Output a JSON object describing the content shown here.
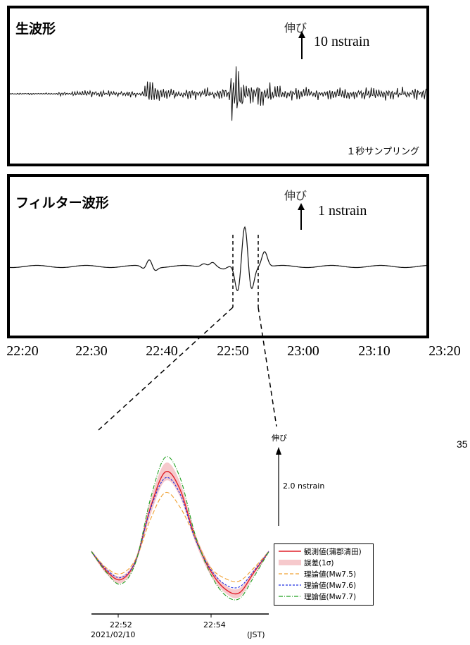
{
  "panels": {
    "raw": {
      "title": "生波形",
      "stretch_label": "伸び",
      "scale_label": "10 nstrain",
      "sampling_note": "１秒サンプリング"
    },
    "filter": {
      "title": "フィルター波形",
      "stretch_label": "伸び",
      "scale_label": "1 nstrain"
    }
  },
  "time_axis": {
    "ticks": [
      "22:20",
      "22:30",
      "22:40",
      "22:50",
      "23:00",
      "23:10",
      "23:20"
    ]
  },
  "page_number": "35",
  "zoom": {
    "stretch_label": "伸び",
    "scale_label": "2.0 nstrain",
    "x_ticks": [
      "22:52",
      "22:54"
    ],
    "date_label": "2021/02/10",
    "tz_label": "(JST)",
    "legend": [
      {
        "label": "観測値(蒲郡清田)",
        "color": "#e0202a",
        "style": "solid"
      },
      {
        "label": "誤差(1σ)",
        "color": "#f6c9cc",
        "style": "band"
      },
      {
        "label": "理論値(Mw7.5)",
        "color": "#f0a030",
        "style": "dashed"
      },
      {
        "label": "理論値(Mw7.6)",
        "color": "#2030e0",
        "style": "dashed"
      },
      {
        "label": "理論値(Mw7.7)",
        "color": "#20a020",
        "style": "dashdot"
      }
    ]
  },
  "chart_data": {
    "type": "line",
    "x_unit": "minutes",
    "zoom_series": [
      {
        "name": "観測値(蒲郡清田)",
        "x": [
          0,
          0.5,
          1.0,
          1.5,
          2.0,
          2.5,
          3.0,
          3.5,
          4.0,
          4.5,
          5.0,
          5.5,
          6.0
        ],
        "values": [
          0.1,
          -0.55,
          -0.85,
          -0.2,
          1.6,
          2.8,
          2.2,
          0.6,
          -0.5,
          -1.15,
          -1.3,
          -0.6,
          0.1
        ]
      },
      {
        "name": "理論値(Mw7.5)",
        "x": [
          0,
          0.5,
          1.0,
          1.5,
          2.0,
          2.5,
          3.0,
          3.5,
          4.0,
          4.5,
          5.0,
          5.5,
          6.0
        ],
        "values": [
          0.1,
          -0.45,
          -0.65,
          -0.15,
          1.2,
          2.1,
          1.6,
          0.6,
          -0.4,
          -0.8,
          -0.9,
          -0.45,
          0.1
        ]
      },
      {
        "name": "理論値(Mw7.6)",
        "x": [
          0,
          0.5,
          1.0,
          1.5,
          2.0,
          2.5,
          3.0,
          3.5,
          4.0,
          4.5,
          5.0,
          5.5,
          6.0
        ],
        "values": [
          0.1,
          -0.5,
          -0.78,
          -0.2,
          1.55,
          2.6,
          2.05,
          0.55,
          -0.45,
          -1.0,
          -1.1,
          -0.55,
          0.1
        ]
      },
      {
        "name": "理論値(Mw7.7)",
        "x": [
          0,
          0.5,
          1.0,
          1.5,
          2.0,
          2.5,
          3.0,
          3.5,
          4.0,
          4.5,
          5.0,
          5.5,
          6.0
        ],
        "values": [
          0.1,
          -0.6,
          -1.0,
          -0.25,
          1.9,
          3.3,
          2.6,
          0.7,
          -0.6,
          -1.35,
          -1.5,
          -0.75,
          0.1
        ]
      }
    ],
    "zoom_band": {
      "x": [
        0,
        0.5,
        1.0,
        1.5,
        2.0,
        2.5,
        3.0,
        3.5,
        4.0,
        4.5,
        5.0,
        5.5,
        6.0
      ],
      "lower": [
        0.05,
        -0.65,
        -0.97,
        -0.3,
        1.35,
        2.5,
        1.95,
        0.45,
        -0.65,
        -1.28,
        -1.45,
        -0.7,
        0.05
      ],
      "upper": [
        0.15,
        -0.45,
        -0.73,
        -0.1,
        1.85,
        3.1,
        2.45,
        0.75,
        -0.35,
        -1.02,
        -1.15,
        -0.5,
        0.15
      ]
    },
    "ylim": [
      -1.8,
      3.6
    ],
    "xlim": [
      0,
      6.0
    ]
  }
}
